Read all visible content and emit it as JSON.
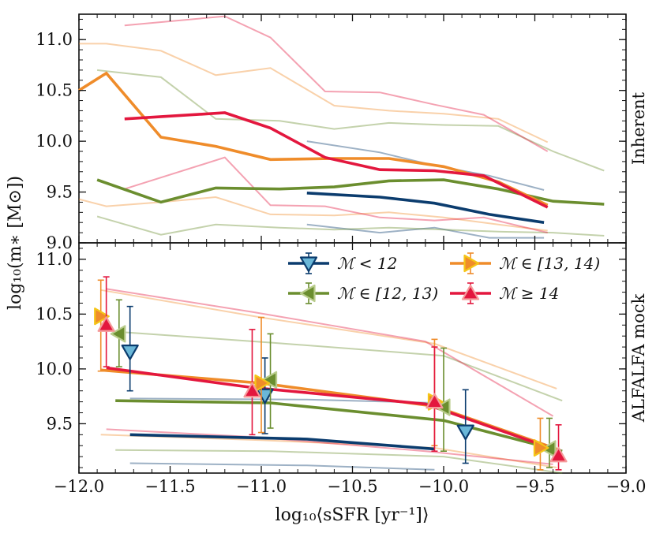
{
  "chart_data": {
    "type": "line",
    "xlabel": "log₁₀⟨sSFR [yr⁻¹]⟩",
    "ylabel": "log₁₀(m∗ [M⊙])",
    "xlim": [
      -12.0,
      -9.0
    ],
    "xticks": [
      -12.0,
      -11.5,
      -11.0,
      -10.5,
      -10.0,
      -9.5,
      -9.0
    ],
    "xtick_labels": [
      "−12.0",
      "−11.5",
      "−11.0",
      "−10.5",
      "−10.0",
      "−9.5",
      "−9.0"
    ],
    "colors": {
      "M<12": "#0b3c6e",
      "M[12,13)": "#6b8e2f",
      "M[13,14)": "#ef8c2a",
      "M>=14": "#e3173e",
      "M[13,14)_marker": "#f5c518"
    },
    "legend": [
      {
        "key": "M<12",
        "label": "ℳ < 12",
        "marker": "triangle-down"
      },
      {
        "key": "M[12,13)",
        "label": "ℳ ∈ [12, 13)",
        "marker": "triangle-left"
      },
      {
        "key": "M[13,14)",
        "label": "ℳ ∈ [13, 14)",
        "marker": "triangle-right"
      },
      {
        "key": "M>=14",
        "label": "ℳ ≥ 14",
        "marker": "triangle-up"
      }
    ],
    "panels": [
      {
        "name": "Inherent",
        "side_label": "Inherent",
        "ylim": [
          9.0,
          11.25
        ],
        "yticks": [
          9.0,
          9.5,
          10.0,
          10.5,
          11.0
        ],
        "ytick_labels": [
          "9.0",
          "9.5",
          "10.0",
          "10.5",
          "11.0"
        ],
        "series": [
          {
            "key": "M<12",
            "median": {
              "x": [
                -10.75,
                -10.35,
                -10.05,
                -9.75,
                -9.45
              ],
              "y": [
                9.49,
                9.45,
                9.39,
                9.28,
                9.2
              ]
            },
            "upper": {
              "x": [
                -10.75,
                -10.35,
                -10.05,
                -9.75,
                -9.45
              ],
              "y": [
                10.0,
                9.89,
                9.76,
                9.66,
                9.52
              ]
            },
            "lower": {
              "x": [
                -10.75,
                -10.35,
                -10.05,
                -9.75,
                -9.45
              ],
              "y": [
                9.18,
                9.1,
                9.15,
                9.05,
                9.05
              ]
            }
          },
          {
            "key": "M[12,13)",
            "median": {
              "x": [
                -11.9,
                -11.55,
                -11.25,
                -10.9,
                -10.6,
                -10.3,
                -10.0,
                -9.7,
                -9.4,
                -9.12
              ],
              "y": [
                9.62,
                9.4,
                9.54,
                9.53,
                9.55,
                9.61,
                9.62,
                9.53,
                9.41,
                9.38
              ]
            },
            "upper": {
              "x": [
                -11.9,
                -11.55,
                -11.25,
                -10.9,
                -10.6,
                -10.3,
                -10.0,
                -9.7,
                -9.4,
                -9.12
              ],
              "y": [
                10.7,
                10.63,
                10.22,
                10.2,
                10.12,
                10.18,
                10.16,
                10.15,
                9.9,
                9.71
              ]
            },
            "lower": {
              "x": [
                -11.9,
                -11.55,
                -11.25,
                -10.9,
                -10.6,
                -10.3,
                -10.0,
                -9.7,
                -9.4,
                -9.12
              ],
              "y": [
                9.26,
                9.08,
                9.18,
                9.15,
                9.13,
                9.15,
                9.13,
                9.11,
                9.1,
                9.07
              ]
            }
          },
          {
            "key": "M[13,14)",
            "median": {
              "x": [
                -12.0,
                -11.85,
                -11.55,
                -11.25,
                -10.95,
                -10.6,
                -10.3,
                -10.0,
                -9.7,
                -9.43
              ],
              "y": [
                10.5,
                10.67,
                10.04,
                9.95,
                9.82,
                9.83,
                9.83,
                9.75,
                9.6,
                9.37
              ]
            },
            "upper": {
              "x": [
                -12.0,
                -11.85,
                -11.55,
                -11.25,
                -10.95,
                -10.6,
                -10.3,
                -10.0,
                -9.7,
                -9.43
              ],
              "y": [
                10.96,
                10.96,
                10.89,
                10.65,
                10.72,
                10.35,
                10.3,
                10.27,
                10.22,
                9.99
              ]
            },
            "lower": {
              "x": [
                -12.0,
                -11.85,
                -11.55,
                -11.25,
                -10.95,
                -10.6,
                -10.3,
                -10.0,
                -9.7,
                -9.43
              ],
              "y": [
                9.43,
                9.36,
                9.4,
                9.45,
                9.28,
                9.27,
                9.3,
                9.25,
                9.18,
                9.12
              ]
            }
          },
          {
            "key": "M>=14",
            "median": {
              "x": [
                -11.75,
                -11.2,
                -10.95,
                -10.65,
                -10.35,
                -10.05,
                -9.78,
                -9.43
              ],
              "y": [
                10.22,
                10.28,
                10.13,
                9.84,
                9.72,
                9.71,
                9.66,
                9.35
              ]
            },
            "upper": {
              "x": [
                -11.75,
                -11.2,
                -10.95,
                -10.65,
                -10.35,
                -10.05,
                -9.78,
                -9.43
              ],
              "y": [
                11.14,
                11.23,
                11.02,
                10.49,
                10.48,
                10.36,
                10.26,
                9.9
              ]
            },
            "lower": {
              "x": [
                -11.75,
                -11.2,
                -10.95,
                -10.65,
                -10.35,
                -10.05,
                -9.78,
                -9.43
              ],
              "y": [
                9.53,
                9.84,
                9.37,
                9.36,
                9.25,
                9.22,
                9.25,
                9.1
              ]
            }
          }
        ]
      },
      {
        "name": "ALFALFA mock",
        "side_label": "ALFALFA mock",
        "ylim": [
          9.05,
          11.15
        ],
        "yticks": [
          9.5,
          10.0,
          10.5,
          11.0
        ],
        "ytick_labels": [
          "9.5",
          "10.0",
          "10.5",
          "11.0"
        ],
        "series": [
          {
            "key": "M<12",
            "median": {
              "x": [
                -11.72,
                -10.75,
                -10.05
              ],
              "y": [
                9.4,
                9.36,
                9.27
              ]
            },
            "upper": {
              "x": [
                -11.72,
                -10.75,
                -10.05
              ],
              "y": [
                9.73,
                9.72,
                9.69
              ]
            },
            "lower": {
              "x": [
                -11.72,
                -10.75,
                -10.05
              ],
              "y": [
                9.14,
                9.12,
                9.08
              ]
            },
            "points": [
              {
                "x": -11.72,
                "y": 10.16,
                "yerr_low": 9.8,
                "yerr_high": 10.57
              },
              {
                "x": -10.98,
                "y": 9.76,
                "yerr_low": 9.41,
                "yerr_high": 10.1
              },
              {
                "x": -9.88,
                "y": 9.43,
                "yerr_low": 9.14,
                "yerr_high": 9.81
              }
            ]
          },
          {
            "key": "M[12,13)",
            "median": {
              "x": [
                -11.8,
                -10.95,
                -10.0,
                -9.35
              ],
              "y": [
                9.71,
                9.69,
                9.53,
                9.25
              ]
            },
            "upper": {
              "x": [
                -11.8,
                -10.95,
                -10.0,
                -9.35
              ],
              "y": [
                10.34,
                10.24,
                10.12,
                9.71
              ]
            },
            "lower": {
              "x": [
                -11.8,
                -10.95,
                -10.0,
                -9.35
              ],
              "y": [
                9.26,
                9.25,
                9.2,
                9.05
              ]
            },
            "points": [
              {
                "x": -11.78,
                "y": 10.32,
                "yerr_low": 10.02,
                "yerr_high": 10.63
              },
              {
                "x": -10.95,
                "y": 9.9,
                "yerr_low": 9.46,
                "yerr_high": 10.32
              },
              {
                "x": -10.0,
                "y": 9.65,
                "yerr_low": 9.25,
                "yerr_high": 10.19
              },
              {
                "x": -9.42,
                "y": 9.27,
                "yerr_low": 9.1,
                "yerr_high": 9.55
              }
            ]
          },
          {
            "key": "M[13,14)",
            "median": {
              "x": [
                -11.88,
                -11.0,
                -10.05,
                -9.38
              ],
              "y": [
                9.99,
                9.87,
                9.66,
                9.27
              ]
            },
            "upper": {
              "x": [
                -11.88,
                -11.0,
                -10.05,
                -9.38
              ],
              "y": [
                10.72,
                10.47,
                10.23,
                9.82
              ]
            },
            "lower": {
              "x": [
                -11.88,
                -11.0,
                -10.05,
                -9.38
              ],
              "y": [
                9.4,
                9.35,
                9.28,
                9.1
              ]
            },
            "points": [
              {
                "x": -11.88,
                "y": 10.48,
                "yerr_low": 9.98,
                "yerr_high": 10.81
              },
              {
                "x": -11.0,
                "y": 9.87,
                "yerr_low": 9.42,
                "yerr_high": 10.47
              },
              {
                "x": -10.05,
                "y": 9.7,
                "yerr_low": 9.3,
                "yerr_high": 10.27
              },
              {
                "x": -9.47,
                "y": 9.28,
                "yerr_low": 9.08,
                "yerr_high": 9.55
              }
            ]
          },
          {
            "key": "M>=14",
            "median": {
              "x": [
                -11.85,
                -11.05,
                -10.1,
                -9.4
              ],
              "y": [
                10.01,
                9.83,
                9.68,
                9.27
              ]
            },
            "upper": {
              "x": [
                -11.85,
                -11.05,
                -10.1,
                -9.4
              ],
              "y": [
                10.73,
                10.52,
                10.25,
                9.57
              ]
            },
            "lower": {
              "x": [
                -11.85,
                -11.05,
                -10.1,
                -9.4
              ],
              "y": [
                9.45,
                9.38,
                9.25,
                9.13
              ]
            },
            "points": [
              {
                "x": -11.85,
                "y": 10.4,
                "yerr_low": 10.02,
                "yerr_high": 10.84
              },
              {
                "x": -11.05,
                "y": 9.8,
                "yerr_low": 9.4,
                "yerr_high": 10.36
              },
              {
                "x": -10.05,
                "y": 9.7,
                "yerr_low": 9.25,
                "yerr_high": 10.2
              },
              {
                "x": -9.37,
                "y": 9.21,
                "yerr_low": 9.08,
                "yerr_high": 9.49
              }
            ]
          }
        ]
      }
    ]
  }
}
